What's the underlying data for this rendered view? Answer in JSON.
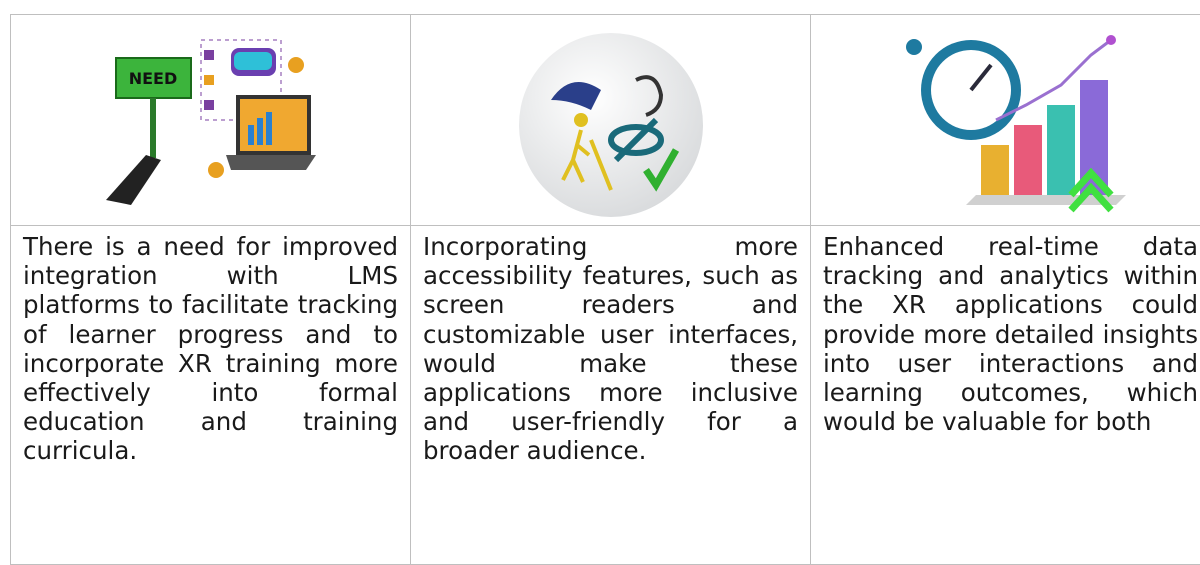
{
  "table": {
    "images": [
      {
        "sign_text": "NEED"
      }
    ],
    "rows": [
      [
        "There is a need for improved integration with LMS platforms to facilitate tracking of learner progress and to incorporate XR training more effectively into formal education and training curricula.",
        "Incorporating more accessibility features, such as screen readers and customizable user interfaces, would make these applications more inclusive and user-friendly for a broader audience.",
        "Enhanced real-time data tracking and analytics within the XR applications could provide more detailed insights into user interactions and learning outcomes, which would be valuable for both"
      ]
    ]
  }
}
